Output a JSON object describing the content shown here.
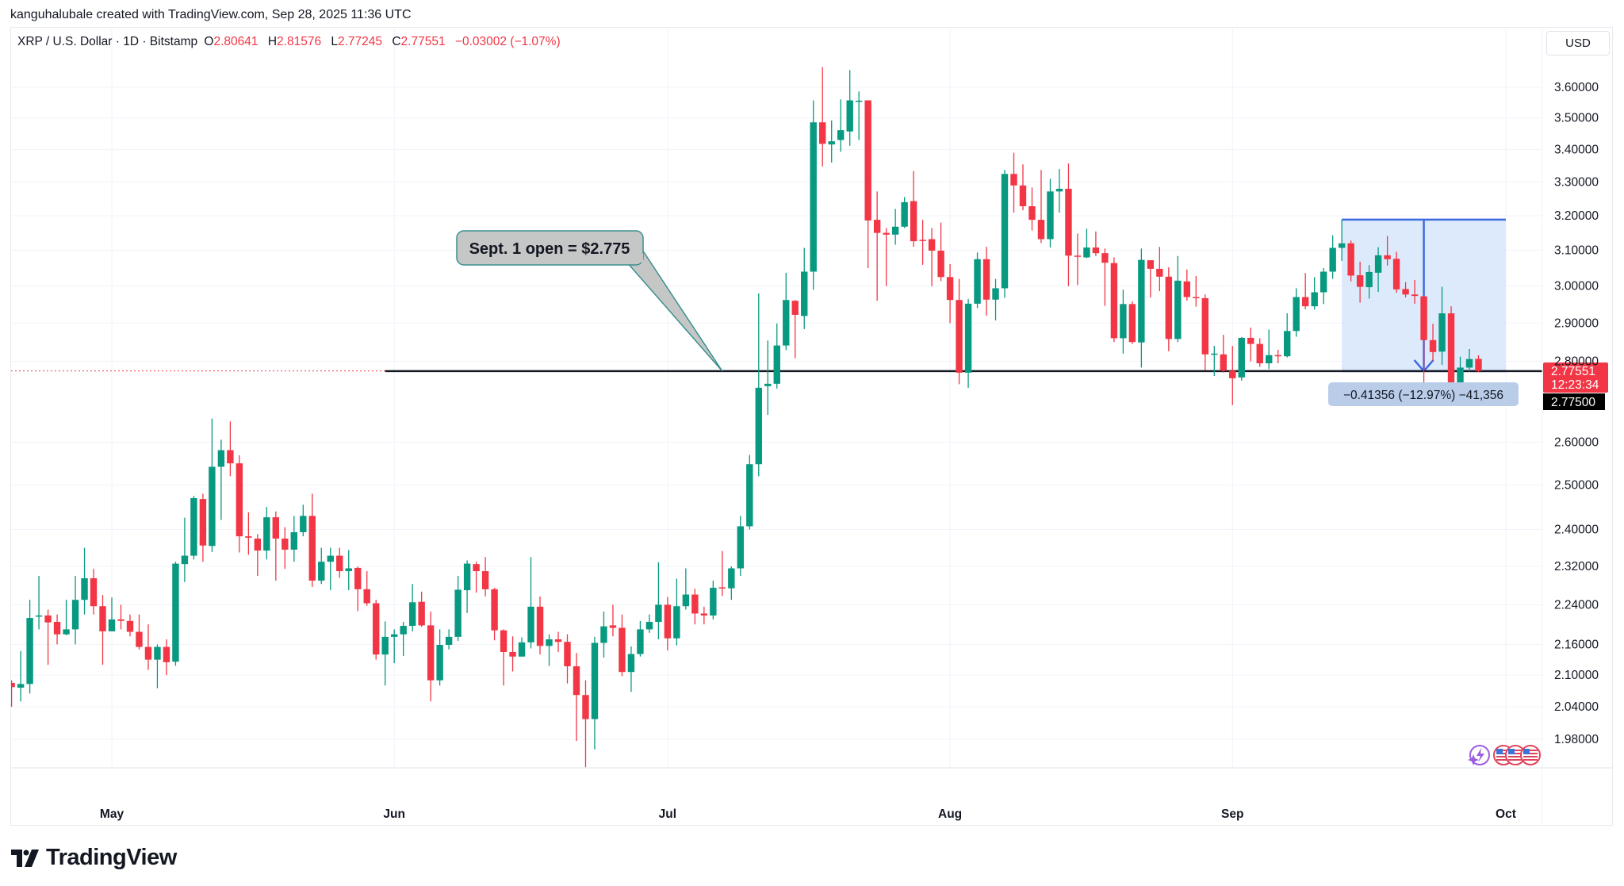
{
  "credit": "kanguhalubale created with TradingView.com, Sep 28, 2025 11:36 UTC",
  "legend": {
    "symbol": "XRP / U.S. Dollar · 1D · Bitstamp",
    "o_label": "O",
    "o": "2.80641",
    "h_label": "H",
    "h": "2.81576",
    "l_label": "L",
    "l": "2.77245",
    "c_label": "C",
    "c": "2.77551",
    "change": "−0.03002 (−1.07%)"
  },
  "currency_button": "USD",
  "logo_text": "TradingView",
  "colors": {
    "up": "#089981",
    "down": "#f23645",
    "measure_fill": "#d7e6fb",
    "measure_line": "#3d6be0",
    "callout_fill": "#c5c7c6",
    "callout_border": "#3b8f8f"
  },
  "icons": [
    "tradingview-logo-icon",
    "lightning-event-icon",
    "us-flag-icon"
  ],
  "price_label": {
    "price": "2.77551",
    "countdown": "12:23:34",
    "line_price": "2.77500"
  },
  "callout": {
    "text": "Sept. 1 open = $2.775"
  },
  "measure": {
    "label": "−0.41356 (−12.97%) −41,356"
  },
  "chart_data": {
    "type": "candlestick",
    "scale": "log",
    "ylim": [
      1.93,
      3.68
    ],
    "grid": true,
    "y_ticks": [
      "3.60000",
      "3.50000",
      "3.40000",
      "3.30000",
      "3.20000",
      "3.10000",
      "3.00000",
      "2.90000",
      "2.80000",
      "2.60000",
      "2.50000",
      "2.40000",
      "2.32000",
      "2.24000",
      "2.16000",
      "2.10000",
      "2.04000",
      "1.98000"
    ],
    "x_ticks": [
      {
        "label": "May",
        "date": "2025-05-01"
      },
      {
        "label": "Jun",
        "date": "2025-06-01"
      },
      {
        "label": "Jul",
        "date": "2025-07-01"
      },
      {
        "label": "Aug",
        "date": "2025-08-01"
      },
      {
        "label": "Sep",
        "date": "2025-09-01"
      },
      {
        "label": "Oct",
        "date": "2025-10-01"
      }
    ],
    "horizontal_line": {
      "price": 2.775,
      "from_date": "2025-05-31"
    },
    "callout_anchor": {
      "date": "2025-07-07",
      "price": 2.775
    },
    "measure": {
      "from_date": "2025-09-13",
      "to_date": "2025-10-01",
      "top": 3.18856,
      "bottom": 2.775,
      "arrow_date": "2025-09-22"
    },
    "columns": [
      "date",
      "open",
      "high",
      "low",
      "close"
    ],
    "candles": [
      [
        "2025-04-20",
        2.085,
        2.09,
        2.04,
        2.077
      ],
      [
        "2025-04-21",
        2.076,
        2.147,
        2.05,
        2.083
      ],
      [
        "2025-04-22",
        2.083,
        2.25,
        2.065,
        2.213
      ],
      [
        "2025-04-23",
        2.216,
        2.3,
        2.19,
        2.218
      ],
      [
        "2025-04-24",
        2.218,
        2.23,
        2.12,
        2.204
      ],
      [
        "2025-04-25",
        2.205,
        2.22,
        2.16,
        2.18
      ],
      [
        "2025-04-26",
        2.18,
        2.25,
        2.178,
        2.19
      ],
      [
        "2025-04-27",
        2.19,
        2.3,
        2.16,
        2.25
      ],
      [
        "2025-04-28",
        2.25,
        2.36,
        2.22,
        2.295
      ],
      [
        "2025-04-29",
        2.295,
        2.315,
        2.22,
        2.237
      ],
      [
        "2025-04-30",
        2.237,
        2.26,
        2.12,
        2.186
      ],
      [
        "2025-05-01",
        2.186,
        2.255,
        2.186,
        2.21
      ],
      [
        "2025-05-02",
        2.21,
        2.24,
        2.19,
        2.207
      ],
      [
        "2025-05-03",
        2.207,
        2.22,
        2.176,
        2.185
      ],
      [
        "2025-05-04",
        2.185,
        2.22,
        2.15,
        2.155
      ],
      [
        "2025-05-05",
        2.155,
        2.2,
        2.11,
        2.13
      ],
      [
        "2025-05-06",
        2.13,
        2.16,
        2.075,
        2.155
      ],
      [
        "2025-05-07",
        2.155,
        2.17,
        2.1,
        2.125
      ],
      [
        "2025-05-08",
        2.126,
        2.33,
        2.118,
        2.326
      ],
      [
        "2025-05-09",
        2.325,
        2.426,
        2.287,
        2.343
      ],
      [
        "2025-05-10",
        2.343,
        2.475,
        2.335,
        2.47
      ],
      [
        "2025-05-11",
        2.468,
        2.48,
        2.33,
        2.365
      ],
      [
        "2025-05-12",
        2.364,
        2.657,
        2.351,
        2.542
      ],
      [
        "2025-05-13",
        2.542,
        2.606,
        2.421,
        2.581
      ],
      [
        "2025-05-14",
        2.581,
        2.65,
        2.52,
        2.55
      ],
      [
        "2025-05-15",
        2.55,
        2.569,
        2.35,
        2.385
      ],
      [
        "2025-05-16",
        2.385,
        2.438,
        2.345,
        2.382
      ],
      [
        "2025-05-17",
        2.38,
        2.39,
        2.3,
        2.354
      ],
      [
        "2025-05-18",
        2.354,
        2.45,
        2.335,
        2.427
      ],
      [
        "2025-05-19",
        2.427,
        2.44,
        2.29,
        2.38
      ],
      [
        "2025-05-20",
        2.38,
        2.405,
        2.315,
        2.356
      ],
      [
        "2025-05-21",
        2.356,
        2.43,
        2.33,
        2.394
      ],
      [
        "2025-05-22",
        2.394,
        2.455,
        2.385,
        2.43
      ],
      [
        "2025-05-23",
        2.43,
        2.48,
        2.277,
        2.29
      ],
      [
        "2025-05-24",
        2.29,
        2.36,
        2.283,
        2.33
      ],
      [
        "2025-05-25",
        2.33,
        2.36,
        2.27,
        2.343
      ],
      [
        "2025-05-26",
        2.343,
        2.36,
        2.296,
        2.31
      ],
      [
        "2025-05-27",
        2.31,
        2.355,
        2.27,
        2.316
      ],
      [
        "2025-05-28",
        2.317,
        2.32,
        2.227,
        2.272
      ],
      [
        "2025-05-29",
        2.272,
        2.31,
        2.238,
        2.243
      ],
      [
        "2025-05-30",
        2.243,
        2.25,
        2.13,
        2.14
      ],
      [
        "2025-05-31",
        2.14,
        2.206,
        2.08,
        2.175
      ],
      [
        "2025-06-01",
        2.175,
        2.19,
        2.123,
        2.18
      ],
      [
        "2025-06-02",
        2.18,
        2.205,
        2.137,
        2.197
      ],
      [
        "2025-06-03",
        2.197,
        2.283,
        2.186,
        2.245
      ],
      [
        "2025-06-04",
        2.246,
        2.267,
        2.195,
        2.198
      ],
      [
        "2025-06-05",
        2.198,
        2.226,
        2.05,
        2.09
      ],
      [
        "2025-06-06",
        2.09,
        2.19,
        2.08,
        2.159
      ],
      [
        "2025-06-07",
        2.159,
        2.19,
        2.15,
        2.175
      ],
      [
        "2025-06-08",
        2.175,
        2.3,
        2.167,
        2.271
      ],
      [
        "2025-06-09",
        2.27,
        2.333,
        2.223,
        2.326
      ],
      [
        "2025-06-10",
        2.325,
        2.33,
        2.265,
        2.31
      ],
      [
        "2025-06-11",
        2.31,
        2.34,
        2.257,
        2.272
      ],
      [
        "2025-06-12",
        2.272,
        2.275,
        2.168,
        2.188
      ],
      [
        "2025-06-13",
        2.188,
        2.19,
        2.08,
        2.145
      ],
      [
        "2025-06-14",
        2.145,
        2.176,
        2.107,
        2.136
      ],
      [
        "2025-06-15",
        2.136,
        2.174,
        2.136,
        2.164
      ],
      [
        "2025-06-16",
        2.164,
        2.34,
        2.152,
        2.236
      ],
      [
        "2025-06-17",
        2.236,
        2.257,
        2.14,
        2.157
      ],
      [
        "2025-06-18",
        2.157,
        2.18,
        2.118,
        2.17
      ],
      [
        "2025-06-19",
        2.17,
        2.185,
        2.145,
        2.165
      ],
      [
        "2025-06-20",
        2.165,
        2.18,
        2.084,
        2.117
      ],
      [
        "2025-06-21",
        2.117,
        2.143,
        1.977,
        2.062
      ],
      [
        "2025-06-22",
        2.062,
        2.09,
        1.93,
        2.017
      ],
      [
        "2025-06-23",
        2.017,
        2.175,
        1.962,
        2.163
      ],
      [
        "2025-06-24",
        2.163,
        2.226,
        2.134,
        2.196
      ],
      [
        "2025-06-25",
        2.198,
        2.24,
        2.176,
        2.193
      ],
      [
        "2025-06-26",
        2.193,
        2.22,
        2.098,
        2.106
      ],
      [
        "2025-06-27",
        2.106,
        2.156,
        2.068,
        2.141
      ],
      [
        "2025-06-28",
        2.141,
        2.207,
        2.136,
        2.19
      ],
      [
        "2025-06-29",
        2.19,
        2.22,
        2.183,
        2.205
      ],
      [
        "2025-06-30",
        2.205,
        2.329,
        2.17,
        2.24
      ],
      [
        "2025-07-01",
        2.24,
        2.256,
        2.148,
        2.172
      ],
      [
        "2025-07-02",
        2.172,
        2.294,
        2.158,
        2.237
      ],
      [
        "2025-07-03",
        2.237,
        2.316,
        2.23,
        2.261
      ],
      [
        "2025-07-04",
        2.261,
        2.273,
        2.2,
        2.222
      ],
      [
        "2025-07-05",
        2.222,
        2.236,
        2.2,
        2.218
      ],
      [
        "2025-07-06",
        2.218,
        2.29,
        2.21,
        2.275
      ],
      [
        "2025-07-07",
        2.276,
        2.353,
        2.258,
        2.274
      ],
      [
        "2025-07-08",
        2.274,
        2.32,
        2.25,
        2.316
      ],
      [
        "2025-07-09",
        2.316,
        2.43,
        2.3,
        2.407
      ],
      [
        "2025-07-10",
        2.407,
        2.57,
        2.4,
        2.548
      ],
      [
        "2025-07-11",
        2.548,
        2.98,
        2.52,
        2.733
      ],
      [
        "2025-07-12",
        2.737,
        2.854,
        2.666,
        2.743
      ],
      [
        "2025-07-13",
        2.743,
        2.899,
        2.731,
        2.841
      ],
      [
        "2025-07-14",
        2.841,
        3.037,
        2.829,
        2.962
      ],
      [
        "2025-07-15",
        2.96,
        2.962,
        2.808,
        2.922
      ],
      [
        "2025-07-16",
        2.919,
        3.107,
        2.884,
        3.04
      ],
      [
        "2025-07-17",
        3.04,
        3.557,
        2.99,
        3.486
      ],
      [
        "2025-07-18",
        3.486,
        3.667,
        3.348,
        3.418
      ],
      [
        "2025-07-19",
        3.416,
        3.492,
        3.36,
        3.426
      ],
      [
        "2025-07-20",
        3.43,
        3.56,
        3.393,
        3.461
      ],
      [
        "2025-07-21",
        3.457,
        3.657,
        3.412,
        3.557
      ],
      [
        "2025-07-22",
        3.553,
        3.586,
        3.43,
        3.556
      ],
      [
        "2025-07-23",
        3.557,
        3.557,
        3.05,
        3.186
      ],
      [
        "2025-07-24",
        3.188,
        3.272,
        2.96,
        3.15
      ],
      [
        "2025-07-25",
        3.15,
        3.164,
        3.0,
        3.145
      ],
      [
        "2025-07-26",
        3.145,
        3.22,
        3.116,
        3.168
      ],
      [
        "2025-07-27",
        3.168,
        3.255,
        3.164,
        3.24
      ],
      [
        "2025-07-28",
        3.243,
        3.334,
        3.11,
        3.126
      ],
      [
        "2025-07-29",
        3.13,
        3.188,
        3.059,
        3.128
      ],
      [
        "2025-07-30",
        3.132,
        3.164,
        3.0,
        3.099
      ],
      [
        "2025-07-31",
        3.099,
        3.18,
        3.014,
        3.025
      ],
      [
        "2025-08-01",
        3.025,
        3.061,
        2.9,
        2.962
      ],
      [
        "2025-08-02",
        2.962,
        3.02,
        2.742,
        2.771
      ],
      [
        "2025-08-03",
        2.771,
        2.965,
        2.733,
        2.952
      ],
      [
        "2025-08-04",
        2.952,
        3.094,
        2.94,
        3.075
      ],
      [
        "2025-08-05",
        3.075,
        3.11,
        2.92,
        2.963
      ],
      [
        "2025-08-06",
        2.963,
        3.02,
        2.907,
        2.994
      ],
      [
        "2025-08-07",
        2.994,
        3.337,
        2.968,
        3.325
      ],
      [
        "2025-08-08",
        3.325,
        3.39,
        3.209,
        3.29
      ],
      [
        "2025-08-09",
        3.29,
        3.354,
        3.216,
        3.228
      ],
      [
        "2025-08-10",
        3.228,
        3.284,
        3.157,
        3.188
      ],
      [
        "2025-08-11",
        3.188,
        3.337,
        3.121,
        3.132
      ],
      [
        "2025-08-12",
        3.132,
        3.31,
        3.108,
        3.272
      ],
      [
        "2025-08-13",
        3.272,
        3.34,
        3.209,
        3.28
      ],
      [
        "2025-08-14",
        3.28,
        3.357,
        3.0,
        3.085
      ],
      [
        "2025-08-15",
        3.085,
        3.148,
        3.003,
        3.082
      ],
      [
        "2025-08-16",
        3.08,
        3.162,
        3.078,
        3.108
      ],
      [
        "2025-08-17",
        3.108,
        3.154,
        3.084,
        3.092
      ],
      [
        "2025-08-18",
        3.092,
        3.105,
        2.946,
        3.065
      ],
      [
        "2025-08-19",
        3.064,
        3.08,
        2.85,
        2.86
      ],
      [
        "2025-08-20",
        2.86,
        2.99,
        2.82,
        2.951
      ],
      [
        "2025-08-21",
        2.951,
        2.958,
        2.845,
        2.85
      ],
      [
        "2025-08-22",
        2.849,
        3.105,
        2.784,
        3.073
      ],
      [
        "2025-08-23",
        3.072,
        3.072,
        2.969,
        3.048
      ],
      [
        "2025-08-24",
        3.048,
        3.11,
        2.986,
        3.026
      ],
      [
        "2025-08-25",
        3.026,
        3.052,
        2.826,
        2.858
      ],
      [
        "2025-08-26",
        2.858,
        3.084,
        2.85,
        3.015
      ],
      [
        "2025-08-27",
        3.013,
        3.046,
        2.96,
        2.97
      ],
      [
        "2025-08-28",
        2.97,
        3.028,
        2.944,
        2.968
      ],
      [
        "2025-08-29",
        2.967,
        2.977,
        2.778,
        2.818
      ],
      [
        "2025-08-30",
        2.818,
        2.84,
        2.763,
        2.82
      ],
      [
        "2025-08-31",
        2.818,
        2.869,
        2.771,
        2.776
      ],
      [
        "2025-09-01",
        2.776,
        2.84,
        2.69,
        2.757
      ],
      [
        "2025-09-02",
        2.759,
        2.863,
        2.751,
        2.861
      ],
      [
        "2025-09-03",
        2.861,
        2.888,
        2.8,
        2.845
      ],
      [
        "2025-09-04",
        2.845,
        2.86,
        2.786,
        2.795
      ],
      [
        "2025-09-05",
        2.795,
        2.883,
        2.78,
        2.816
      ],
      [
        "2025-09-06",
        2.816,
        2.83,
        2.795,
        2.813
      ],
      [
        "2025-09-07",
        2.813,
        2.926,
        2.81,
        2.879
      ],
      [
        "2025-09-08",
        2.879,
        2.994,
        2.864,
        2.97
      ],
      [
        "2025-09-09",
        2.97,
        3.036,
        2.937,
        2.945
      ],
      [
        "2025-09-10",
        2.945,
        3.025,
        2.936,
        2.983
      ],
      [
        "2025-09-11",
        2.983,
        3.05,
        2.951,
        3.04
      ],
      [
        "2025-09-12",
        3.04,
        3.143,
        3.02,
        3.107
      ],
      [
        "2025-09-13",
        3.107,
        3.18856,
        3.07,
        3.12
      ],
      [
        "2025-09-14",
        3.12,
        3.128,
        3.013,
        3.029
      ],
      [
        "2025-09-15",
        3.03,
        3.068,
        2.955,
        2.998
      ],
      [
        "2025-09-16",
        2.997,
        3.058,
        2.966,
        3.039
      ],
      [
        "2025-09-17",
        3.037,
        3.109,
        2.984,
        3.086
      ],
      [
        "2025-09-18",
        3.086,
        3.141,
        3.057,
        3.075
      ],
      [
        "2025-09-19",
        3.076,
        3.096,
        2.982,
        2.991
      ],
      [
        "2025-09-20",
        2.992,
        3.011,
        2.969,
        2.977
      ],
      [
        "2025-09-21",
        2.977,
        3.017,
        2.952,
        2.973
      ],
      [
        "2025-09-22",
        2.972,
        2.972,
        2.694,
        2.855
      ],
      [
        "2025-09-23",
        2.855,
        2.898,
        2.801,
        2.824
      ],
      [
        "2025-09-24",
        2.825,
        2.998,
        2.791,
        2.926
      ],
      [
        "2025-09-25",
        2.926,
        2.945,
        2.731,
        2.744
      ],
      [
        "2025-09-26",
        2.744,
        2.812,
        2.699,
        2.784
      ],
      [
        "2025-09-27",
        2.784,
        2.832,
        2.774,
        2.806
      ],
      [
        "2025-09-28",
        2.80641,
        2.81576,
        2.77245,
        2.77551
      ]
    ]
  }
}
